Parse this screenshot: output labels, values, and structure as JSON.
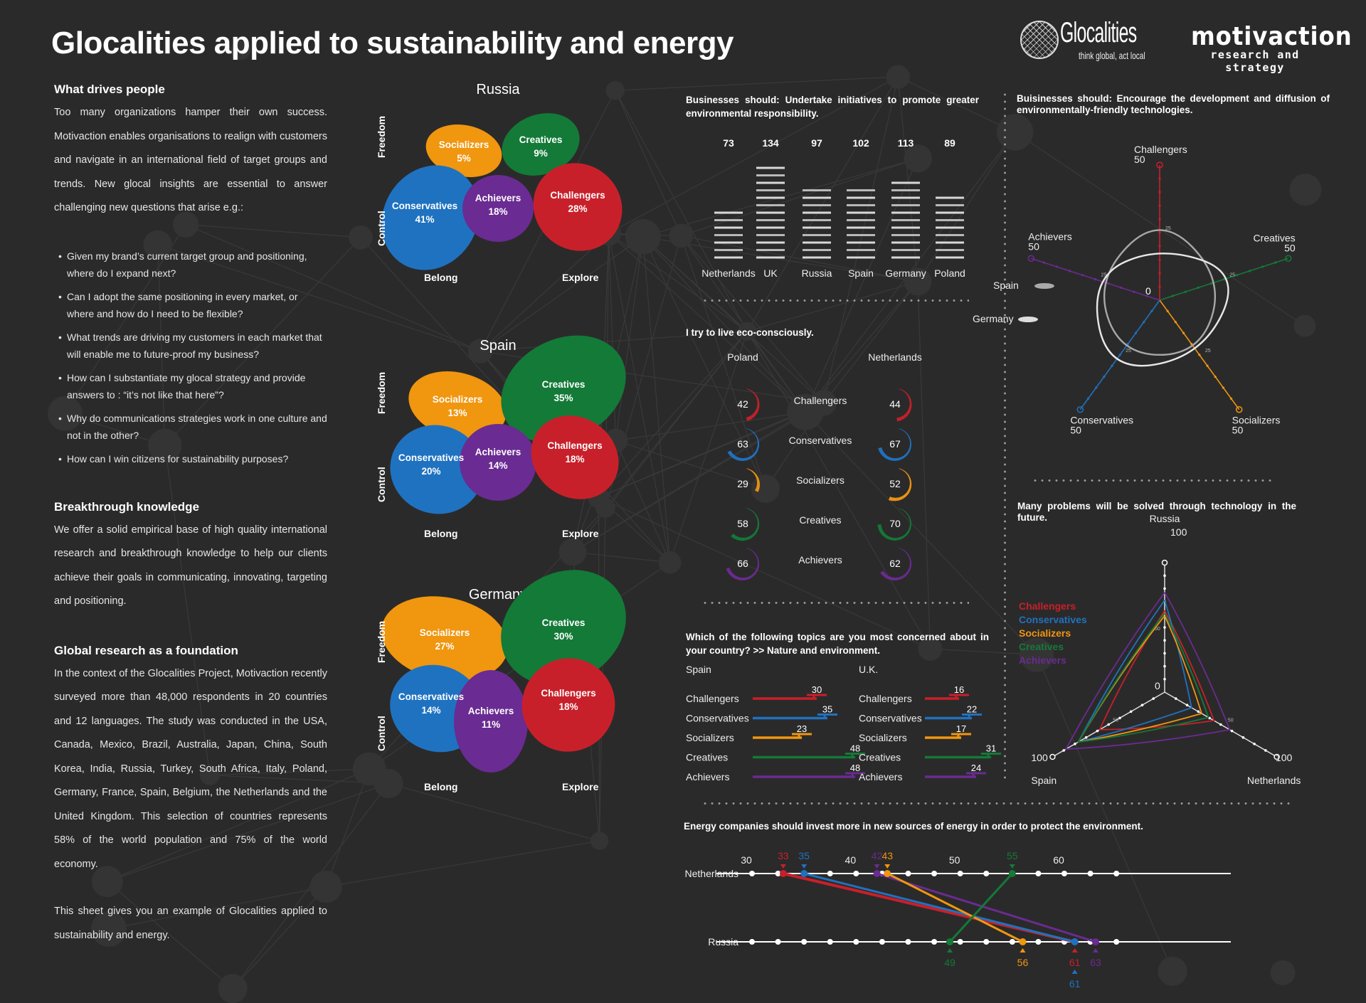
{
  "header": {
    "title": "Glocalities applied to sustainability and energy",
    "logo_glocalities": {
      "name": "Glocalities",
      "tagline": "think global, act local",
      "icon": "globe-icon"
    },
    "logo_motivaction": {
      "name": "motivaction",
      "tagline": "research and strategy"
    }
  },
  "left": {
    "sections": [
      {
        "heading": "What drives people",
        "paragraphs": [
          "Too many organizations hamper their own success. Motivaction enables organisations to realign with customers and navigate in an international field of target groups and trends. New glocal insights are essential to answer challenging new questions that arise e.g.:"
        ],
        "bullets": [
          "Given my brand’s current target group and positioning, where do I expand next?",
          "Can I adopt the same positioning in every market, or where and how do I need to be flexible?",
          "What trends are driving my customers in each market that will enable me to future-proof my business?",
          "How can I substantiate my glocal strategy and provide answers to : “it’s not like that here”?",
          "Why do communications strategies  work in one culture and not in the other?",
          "How can I win citizens for sustainability purposes?"
        ]
      },
      {
        "heading": "Breakthrough knowledge",
        "paragraphs": [
          "We offer a solid empirical base of high quality international research and breakthrough knowledge to help our clients achieve their goals in communicating, innovating, targeting and positioning."
        ]
      },
      {
        "heading": "Global research as a foundation",
        "paragraphs": [
          "In the context of the Glocalities Project, Motivaction recently surveyed more than 48,000 respondents in 20 countries and 12 languages. The study was conducted in the USA, Canada, Mexico, Brazil, Australia, Japan, China, South Korea, India, Russia, Turkey, South Africa, Italy, Poland, Germany, France, Spain, Belgium, the Netherlands and the United Kingdom. This selection of countries represents 58% of the world population and 75% of the world economy.",
          "This sheet gives you an example of Glocalities applied to sustainability and energy."
        ]
      }
    ]
  },
  "segment_colors": {
    "Challengers": "#c8202a",
    "Conservatives": "#1f72c0",
    "Socializers": "#f0960f",
    "Creatives": "#137a38",
    "Achievers": "#6a2b92"
  },
  "chart_data": [
    {
      "type": "table",
      "id": "segments",
      "title": "Segment distribution per country",
      "axes": {
        "top": "Freedom",
        "bottom": "Control",
        "left": "Belong",
        "right": "Explore"
      },
      "countries": [
        {
          "name": "Russia",
          "segments": [
            {
              "name": "Socializers",
              "pct": "5%"
            },
            {
              "name": "Creatives",
              "pct": "9%"
            },
            {
              "name": "Conservatives",
              "pct": "41%"
            },
            {
              "name": "Achievers",
              "pct": "18%"
            },
            {
              "name": "Challengers",
              "pct": "28%"
            }
          ]
        },
        {
          "name": "Spain",
          "segments": [
            {
              "name": "Socializers",
              "pct": "13%"
            },
            {
              "name": "Creatives",
              "pct": "35%"
            },
            {
              "name": "Conservatives",
              "pct": "20%"
            },
            {
              "name": "Achievers",
              "pct": "14%"
            },
            {
              "name": "Challengers",
              "pct": "18%"
            }
          ]
        },
        {
          "name": "Germany",
          "segments": [
            {
              "name": "Socializers",
              "pct": "27%"
            },
            {
              "name": "Creatives",
              "pct": "30%"
            },
            {
              "name": "Conservatives",
              "pct": "14%"
            },
            {
              "name": "Achievers",
              "pct": "11%"
            },
            {
              "name": "Challengers",
              "pct": "18%"
            }
          ]
        }
      ]
    },
    {
      "type": "bar",
      "id": "initiatives",
      "title": "Businesses should: Undertake initiatives to promote greater environmental responsibility.",
      "categories": [
        "Netherlands",
        "UK",
        "Russia",
        "Spain",
        "Germany",
        "Poland"
      ],
      "values": [
        73,
        134,
        97,
        102,
        113,
        89
      ],
      "ylim": [
        0,
        140
      ]
    },
    {
      "type": "line",
      "id": "technologies-radar",
      "title": "Buisinesses should: Encourage the development and diffusion of environmentally-friendly technologies.",
      "axes": [
        "Challengers",
        "Creatives",
        "Socializers",
        "Conservatives",
        "Achievers"
      ],
      "axis_max_label": "50",
      "tick_label": "25",
      "center_label": "0",
      "range": [
        0,
        50
      ],
      "series": [
        {
          "name": "Spain",
          "values": [
            32,
            25,
            25,
            25,
            25
          ]
        },
        {
          "name": "Germany",
          "values": [
            20,
            32,
            26,
            33,
            27
          ]
        }
      ]
    },
    {
      "type": "table",
      "id": "eco-conscious",
      "title": "I try to live eco-consciously.",
      "columns": [
        "Poland",
        "Netherlands"
      ],
      "rows": [
        {
          "segment": "Challengers",
          "Poland": 42,
          "Netherlands": 44
        },
        {
          "segment": "Conservatives",
          "Poland": 63,
          "Netherlands": 67
        },
        {
          "segment": "Socializers",
          "Poland": 29,
          "Netherlands": 52
        },
        {
          "segment": "Creatives",
          "Poland": 58,
          "Netherlands": 70
        },
        {
          "segment": "Achievers",
          "Poland": 66,
          "Netherlands": 62
        }
      ]
    },
    {
      "type": "bar",
      "id": "nature-concern",
      "title": "Which of the following topics are you most concerned about in your country? >> Nature and environment.",
      "categories": [
        "Challengers",
        "Conservatives",
        "Socializers",
        "Creatives",
        "Achievers"
      ],
      "series": [
        {
          "name": "Spain",
          "values": [
            30,
            35,
            23,
            48,
            48
          ]
        },
        {
          "name": "U.K.",
          "values": [
            16,
            22,
            17,
            31,
            24
          ]
        }
      ]
    },
    {
      "type": "line",
      "id": "technology-future",
      "title": "Many problems will be solved through technology in the future.",
      "axes": [
        "Russia",
        "Netherlands",
        "Spain"
      ],
      "range": [
        0,
        100
      ],
      "axis_max_label": "100",
      "tick_label": "50",
      "center_label": "0",
      "legend": "left",
      "series": [
        {
          "name": "Challengers",
          "values": [
            63,
            44,
            58
          ]
        },
        {
          "name": "Conservatives",
          "values": [
            71,
            24,
            77
          ]
        },
        {
          "name": "Socializers",
          "values": [
            59,
            33,
            77
          ]
        },
        {
          "name": "Creatives",
          "values": [
            61,
            39,
            77
          ]
        },
        {
          "name": "Achievers",
          "values": [
            77,
            58,
            88
          ]
        }
      ]
    },
    {
      "type": "line",
      "id": "energy-slope",
      "title": "Energy companies should invest more in new sources of energy in order to protect the environment.",
      "x_ticks": [
        30,
        40,
        50,
        60
      ],
      "xlim": [
        25,
        68
      ],
      "rows": [
        "Netherlands",
        "Russia"
      ],
      "series": [
        {
          "name": "Challengers",
          "Netherlands": 33,
          "Russia": 61
        },
        {
          "name": "Conservatives",
          "Netherlands": 35,
          "Russia": 61
        },
        {
          "name": "Achievers",
          "Netherlands": 42,
          "Russia": 63
        },
        {
          "name": "Socializers",
          "Netherlands": 43,
          "Russia": 56
        },
        {
          "name": "Creatives",
          "Netherlands": 55,
          "Russia": 49
        }
      ]
    }
  ]
}
